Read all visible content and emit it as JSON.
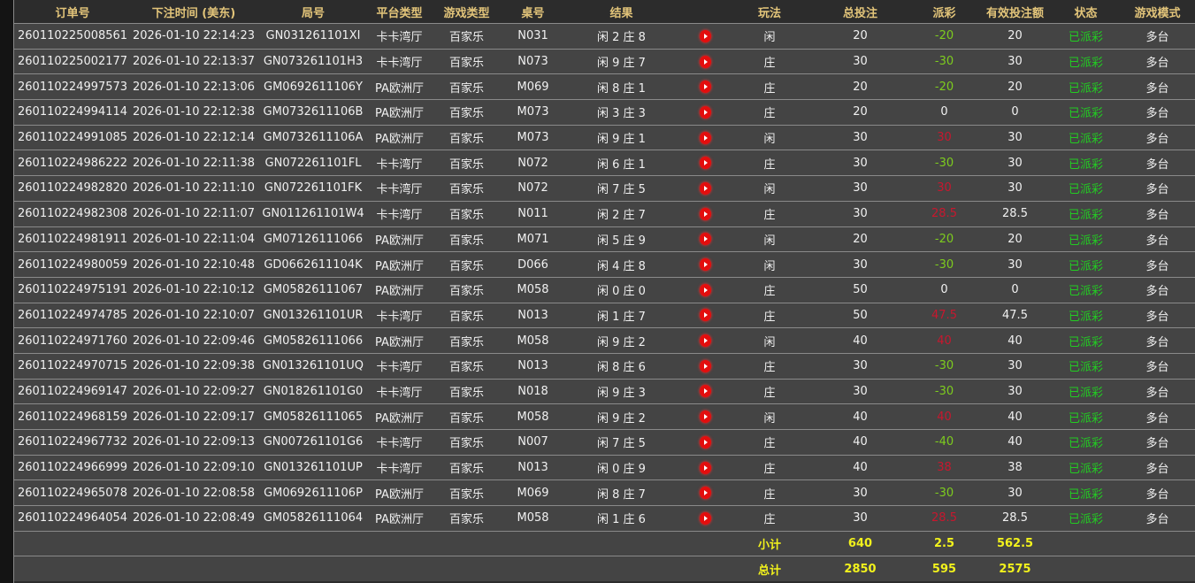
{
  "headers": [
    "订单号",
    "下注时间 (美东)",
    "局号",
    "平台类型",
    "游戏类型",
    "桌号",
    "结果",
    "",
    "玩法",
    "总投注",
    "派彩",
    "有效投注额",
    "状态",
    "游戏模式"
  ],
  "colors": {
    "header": "#e3c57a",
    "negative_payout": "#7dcc1e",
    "positive_payout": "#c8172e",
    "status": "#22cc22",
    "summary": "#f2f21c",
    "row_bg": "#444444"
  },
  "rows": [
    [
      "260110225008561",
      "2026-01-10 22:14:23",
      "GN031261101XI",
      "卡卡湾厅",
      "百家乐",
      "N031",
      "闲 2 庄 8",
      "闲",
      "20",
      "-20",
      "20",
      "已派彩",
      "多台"
    ],
    [
      "260110225002177",
      "2026-01-10 22:13:37",
      "GN073261101H3",
      "卡卡湾厅",
      "百家乐",
      "N073",
      "闲 9 庄 7",
      "庄",
      "30",
      "-30",
      "30",
      "已派彩",
      "多台"
    ],
    [
      "260110224997573",
      "2026-01-10 22:13:06",
      "GM0692611106Y",
      "PA欧洲厅",
      "百家乐",
      "M069",
      "闲 8 庄 1",
      "庄",
      "20",
      "-20",
      "20",
      "已派彩",
      "多台"
    ],
    [
      "260110224994114",
      "2026-01-10 22:12:38",
      "GM0732611106B",
      "PA欧洲厅",
      "百家乐",
      "M073",
      "闲 3 庄 3",
      "庄",
      "20",
      "0",
      "0",
      "已派彩",
      "多台"
    ],
    [
      "260110224991085",
      "2026-01-10 22:12:14",
      "GM0732611106A",
      "PA欧洲厅",
      "百家乐",
      "M073",
      "闲 9 庄 1",
      "闲",
      "30",
      "30",
      "30",
      "已派彩",
      "多台"
    ],
    [
      "260110224986222",
      "2026-01-10 22:11:38",
      "GN072261101FL",
      "卡卡湾厅",
      "百家乐",
      "N072",
      "闲 6 庄 1",
      "庄",
      "30",
      "-30",
      "30",
      "已派彩",
      "多台"
    ],
    [
      "260110224982820",
      "2026-01-10 22:11:10",
      "GN072261101FK",
      "卡卡湾厅",
      "百家乐",
      "N072",
      "闲 7 庄 5",
      "闲",
      "30",
      "30",
      "30",
      "已派彩",
      "多台"
    ],
    [
      "260110224982308",
      "2026-01-10 22:11:07",
      "GN011261101W4",
      "卡卡湾厅",
      "百家乐",
      "N011",
      "闲 2 庄 7",
      "庄",
      "30",
      "28.5",
      "28.5",
      "已派彩",
      "多台"
    ],
    [
      "260110224981911",
      "2026-01-10 22:11:04",
      "GM07126111066",
      "PA欧洲厅",
      "百家乐",
      "M071",
      "闲 5 庄 9",
      "闲",
      "20",
      "-20",
      "20",
      "已派彩",
      "多台"
    ],
    [
      "260110224980059",
      "2026-01-10 22:10:48",
      "GD0662611104K",
      "PA欧洲厅",
      "百家乐",
      "D066",
      "闲 4 庄 8",
      "闲",
      "30",
      "-30",
      "30",
      "已派彩",
      "多台"
    ],
    [
      "260110224975191",
      "2026-01-10 22:10:12",
      "GM05826111067",
      "PA欧洲厅",
      "百家乐",
      "M058",
      "闲 0 庄 0",
      "庄",
      "50",
      "0",
      "0",
      "已派彩",
      "多台"
    ],
    [
      "260110224974785",
      "2026-01-10 22:10:07",
      "GN013261101UR",
      "卡卡湾厅",
      "百家乐",
      "N013",
      "闲 1 庄 7",
      "庄",
      "50",
      "47.5",
      "47.5",
      "已派彩",
      "多台"
    ],
    [
      "260110224971760",
      "2026-01-10 22:09:46",
      "GM05826111066",
      "PA欧洲厅",
      "百家乐",
      "M058",
      "闲 9 庄 2",
      "闲",
      "40",
      "40",
      "40",
      "已派彩",
      "多台"
    ],
    [
      "260110224970715",
      "2026-01-10 22:09:38",
      "GN013261101UQ",
      "卡卡湾厅",
      "百家乐",
      "N013",
      "闲 8 庄 6",
      "庄",
      "30",
      "-30",
      "30",
      "已派彩",
      "多台"
    ],
    [
      "260110224969147",
      "2026-01-10 22:09:27",
      "GN018261101G0",
      "卡卡湾厅",
      "百家乐",
      "N018",
      "闲 9 庄 3",
      "庄",
      "30",
      "-30",
      "30",
      "已派彩",
      "多台"
    ],
    [
      "260110224968159",
      "2026-01-10 22:09:17",
      "GM05826111065",
      "PA欧洲厅",
      "百家乐",
      "M058",
      "闲 9 庄 2",
      "闲",
      "40",
      "40",
      "40",
      "已派彩",
      "多台"
    ],
    [
      "260110224967732",
      "2026-01-10 22:09:13",
      "GN007261101G6",
      "卡卡湾厅",
      "百家乐",
      "N007",
      "闲 7 庄 5",
      "庄",
      "40",
      "-40",
      "40",
      "已派彩",
      "多台"
    ],
    [
      "260110224966999",
      "2026-01-10 22:09:10",
      "GN013261101UP",
      "卡卡湾厅",
      "百家乐",
      "N013",
      "闲 0 庄 9",
      "庄",
      "40",
      "38",
      "38",
      "已派彩",
      "多台"
    ],
    [
      "260110224965078",
      "2026-01-10 22:08:58",
      "GM0692611106P",
      "PA欧洲厅",
      "百家乐",
      "M069",
      "闲 8 庄 7",
      "庄",
      "30",
      "-30",
      "30",
      "已派彩",
      "多台"
    ],
    [
      "260110224964054",
      "2026-01-10 22:08:49",
      "GM05826111064",
      "PA欧洲厅",
      "百家乐",
      "M058",
      "闲 1 庄 6",
      "庄",
      "30",
      "28.5",
      "28.5",
      "已派彩",
      "多台"
    ]
  ],
  "subtotal": {
    "label": "小计",
    "total_bet": "640",
    "payout": "2.5",
    "valid_bet": "562.5"
  },
  "total": {
    "label": "总计",
    "total_bet": "2850",
    "payout": "595",
    "valid_bet": "2575"
  },
  "row_icon": "play-video-icon"
}
